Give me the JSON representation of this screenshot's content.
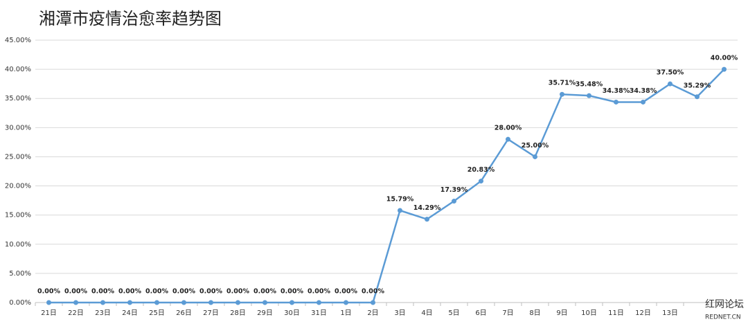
{
  "chart_data": {
    "type": "line",
    "title": "湘潭市疫情治愈率趋势图",
    "categories": [
      "21日",
      "22日",
      "23日",
      "24日",
      "25日",
      "26日",
      "27日",
      "28日",
      "29日",
      "30日",
      "31日",
      "1日",
      "2日",
      "3日",
      "4日",
      "5日",
      "6日",
      "7日",
      "8日",
      "9日",
      "10日",
      "11日",
      "12日",
      "13日",
      null,
      null
    ],
    "series": [
      {
        "name": "治愈率",
        "color": "#5b9bd5",
        "values": [
          0,
          0,
          0,
          0,
          0,
          0,
          0,
          0,
          0,
          0,
          0,
          0,
          0,
          15.79,
          14.29,
          17.39,
          20.83,
          28,
          25,
          35.71,
          35.48,
          34.38,
          34.38,
          37.5,
          35.29,
          40
        ],
        "value_labels": [
          "0.00%",
          "0.00%",
          "0.00%",
          "0.00%",
          "0.00%",
          "0.00%",
          "0.00%",
          "0.00%",
          "0.00%",
          "0.00%",
          "0.00%",
          "0.00%",
          "0.00%",
          "15.79%",
          "14.29%",
          "17.39%",
          "20.83%",
          "28.00%",
          "25.00%",
          "35.71%",
          "35.48%",
          "34.38%",
          "34.38%",
          "37.50%",
          "35.29%",
          "40.00%"
        ]
      }
    ],
    "ylim": [
      0,
      45
    ],
    "yticks": [
      {
        "value": 0,
        "label": "0.00%"
      },
      {
        "value": 5,
        "label": "5.00%"
      },
      {
        "value": 10,
        "label": "10.00%"
      },
      {
        "value": 15,
        "label": "15.00%"
      },
      {
        "value": 20,
        "label": "20.00%"
      },
      {
        "value": 25,
        "label": "25.00%"
      },
      {
        "value": 30,
        "label": "30.00%"
      },
      {
        "value": 35,
        "label": "35.00%"
      },
      {
        "value": 40,
        "label": "40.00%"
      },
      {
        "value": 45,
        "label": "45.00%"
      }
    ],
    "grid": true
  },
  "watermark": {
    "brand": "红网论坛",
    "site": "REDNET.CN"
  }
}
